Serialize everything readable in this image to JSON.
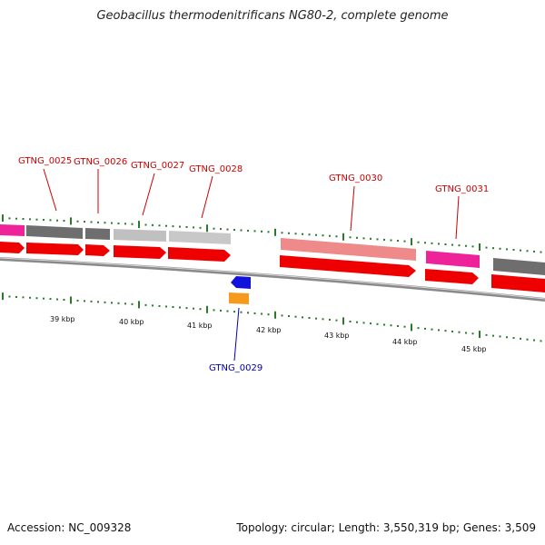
{
  "header": {
    "title": "Geobacillus thermodenitrificans NG80-2, complete genome"
  },
  "footer": {
    "accession": "Accession: NC_009328",
    "summary": "Topology: circular; Length: 3,550,319 bp; Genes: 3,509"
  },
  "colors": {
    "cds_red": "#ee0000",
    "gene_grey_dark": "#6e6e6e",
    "gene_grey_light": "#c0c0c0",
    "gene_pink": "#ee2299",
    "gene_salmon": "#ee8a8a",
    "gene_blue": "#1111dd",
    "gene_orange": "#f59a1a",
    "tick_green": "#2a7a2a",
    "label_red": "#cc0000",
    "label_blue": "#0000aa"
  },
  "gene_labels": [
    {
      "id": "GTNG_0025",
      "strand": "plus"
    },
    {
      "id": "GTNG_0026",
      "strand": "plus"
    },
    {
      "id": "GTNG_0027",
      "strand": "plus"
    },
    {
      "id": "GTNG_0028",
      "strand": "plus"
    },
    {
      "id": "GTNG_0029",
      "strand": "minus"
    },
    {
      "id": "GTNG_0030",
      "strand": "plus"
    },
    {
      "id": "GTNG_0031",
      "strand": "plus"
    }
  ],
  "scale_labels": [
    "39 kbp",
    "40 kbp",
    "41 kbp",
    "42 kbp",
    "43 kbp",
    "44 kbp",
    "45 kbp"
  ]
}
